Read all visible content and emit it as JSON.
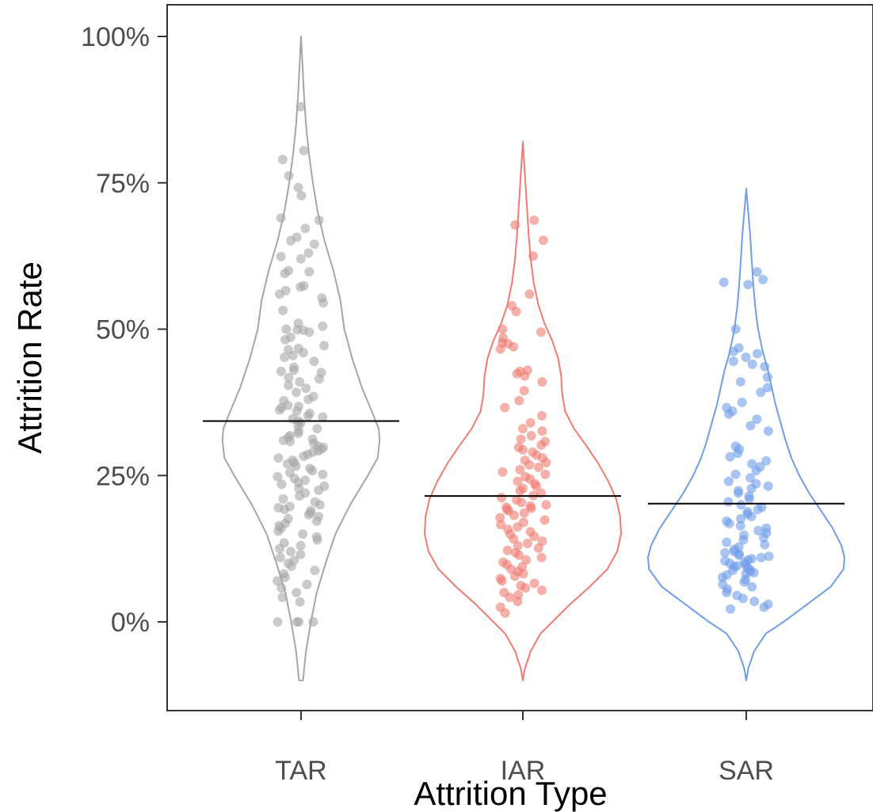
{
  "chart_data": {
    "type": "violin",
    "xlabel": "Attrition Type",
    "ylabel": "Attrition Rate",
    "ylim": [
      -0.12,
      1.06
    ],
    "y_ticks": [
      {
        "value": 0,
        "label": "0%"
      },
      {
        "value": 0.25,
        "label": "25%"
      },
      {
        "value": 0.5,
        "label": "50%"
      },
      {
        "value": 0.75,
        "label": "75%"
      },
      {
        "value": 1.0,
        "label": "100%"
      }
    ],
    "categories": [
      "TAR",
      "IAR",
      "SAR"
    ],
    "grid": false,
    "legend": "none",
    "series": [
      {
        "category": "TAR",
        "color": "#a6a6a6",
        "mean": 0.343,
        "range": [
          -0.1,
          1.0
        ],
        "density_profile": [
          [
            -0.1,
            0.02
          ],
          [
            -0.05,
            0.05
          ],
          [
            0.0,
            0.1
          ],
          [
            0.05,
            0.16
          ],
          [
            0.1,
            0.25
          ],
          [
            0.15,
            0.35
          ],
          [
            0.2,
            0.5
          ],
          [
            0.25,
            0.68
          ],
          [
            0.28,
            0.78
          ],
          [
            0.31,
            0.8
          ],
          [
            0.33,
            0.79
          ],
          [
            0.36,
            0.72
          ],
          [
            0.4,
            0.62
          ],
          [
            0.45,
            0.52
          ],
          [
            0.5,
            0.44
          ],
          [
            0.55,
            0.4
          ],
          [
            0.6,
            0.33
          ],
          [
            0.65,
            0.24
          ],
          [
            0.7,
            0.17
          ],
          [
            0.75,
            0.12
          ],
          [
            0.8,
            0.08
          ],
          [
            0.85,
            0.05
          ],
          [
            0.9,
            0.03
          ],
          [
            0.95,
            0.015
          ],
          [
            1.0,
            0.0
          ]
        ],
        "points": [
          0.88,
          0.805,
          0.79,
          0.762,
          0.742,
          0.728,
          0.69,
          0.686,
          0.672,
          0.657,
          0.651,
          0.645,
          0.63,
          0.624,
          0.62,
          0.6,
          0.598,
          0.595,
          0.574,
          0.572,
          0.566,
          0.56,
          0.553,
          0.545,
          0.532,
          0.51,
          0.505,
          0.5,
          0.499,
          0.498,
          0.495,
          0.486,
          0.482,
          0.472,
          0.467,
          0.465,
          0.46,
          0.455,
          0.452,
          0.445,
          0.435,
          0.43,
          0.428,
          0.426,
          0.417,
          0.415,
          0.41,
          0.404,
          0.399,
          0.392,
          0.385,
          0.38,
          0.378,
          0.37,
          0.368,
          0.366,
          0.362,
          0.36,
          0.356,
          0.352,
          0.35,
          0.347,
          0.343,
          0.34,
          0.335,
          0.33,
          0.326,
          0.322,
          0.318,
          0.315,
          0.312,
          0.31,
          0.308,
          0.305,
          0.3,
          0.298,
          0.295,
          0.292,
          0.29,
          0.286,
          0.283,
          0.28,
          0.276,
          0.272,
          0.27,
          0.266,
          0.262,
          0.258,
          0.255,
          0.252,
          0.248,
          0.245,
          0.242,
          0.238,
          0.235,
          0.232,
          0.228,
          0.225,
          0.22,
          0.215,
          0.21,
          0.205,
          0.2,
          0.197,
          0.195,
          0.192,
          0.19,
          0.186,
          0.183,
          0.18,
          0.176,
          0.172,
          0.168,
          0.164,
          0.16,
          0.155,
          0.15,
          0.145,
          0.14,
          0.135,
          0.13,
          0.125,
          0.12,
          0.115,
          0.11,
          0.105,
          0.1,
          0.095,
          0.088,
          0.082,
          0.076,
          0.07,
          0.064,
          0.058,
          0.05,
          0.042,
          0.034,
          0.0,
          0.0,
          0.0,
          0.0
        ]
      },
      {
        "category": "IAR",
        "color": "#ef7b72",
        "mean": 0.215,
        "range": [
          -0.1,
          0.82
        ],
        "density_profile": [
          [
            -0.1,
            0.0
          ],
          [
            -0.08,
            0.02
          ],
          [
            -0.05,
            0.08
          ],
          [
            -0.02,
            0.18
          ],
          [
            0.0,
            0.3
          ],
          [
            0.03,
            0.48
          ],
          [
            0.06,
            0.68
          ],
          [
            0.09,
            0.86
          ],
          [
            0.12,
            0.96
          ],
          [
            0.15,
            1.0
          ],
          [
            0.18,
            0.99
          ],
          [
            0.21,
            0.95
          ],
          [
            0.24,
            0.87
          ],
          [
            0.27,
            0.77
          ],
          [
            0.3,
            0.65
          ],
          [
            0.33,
            0.52
          ],
          [
            0.36,
            0.43
          ],
          [
            0.39,
            0.4
          ],
          [
            0.42,
            0.39
          ],
          [
            0.45,
            0.36
          ],
          [
            0.48,
            0.3
          ],
          [
            0.51,
            0.22
          ],
          [
            0.54,
            0.16
          ],
          [
            0.58,
            0.11
          ],
          [
            0.62,
            0.08
          ],
          [
            0.66,
            0.06
          ],
          [
            0.7,
            0.045
          ],
          [
            0.74,
            0.03
          ],
          [
            0.78,
            0.015
          ],
          [
            0.82,
            0.0
          ]
        ],
        "points": [
          0.686,
          0.678,
          0.652,
          0.625,
          0.56,
          0.54,
          0.53,
          0.5,
          0.495,
          0.485,
          0.477,
          0.475,
          0.47,
          0.466,
          0.43,
          0.428,
          0.424,
          0.42,
          0.41,
          0.395,
          0.378,
          0.366,
          0.352,
          0.34,
          0.33,
          0.326,
          0.318,
          0.312,
          0.308,
          0.302,
          0.298,
          0.294,
          0.29,
          0.285,
          0.28,
          0.276,
          0.272,
          0.268,
          0.264,
          0.26,
          0.256,
          0.252,
          0.248,
          0.244,
          0.24,
          0.236,
          0.232,
          0.228,
          0.224,
          0.22,
          0.216,
          0.212,
          0.208,
          0.204,
          0.2,
          0.198,
          0.196,
          0.194,
          0.192,
          0.19,
          0.186,
          0.182,
          0.178,
          0.174,
          0.17,
          0.166,
          0.162,
          0.158,
          0.154,
          0.15,
          0.146,
          0.142,
          0.138,
          0.134,
          0.13,
          0.126,
          0.122,
          0.118,
          0.114,
          0.11,
          0.106,
          0.102,
          0.098,
          0.094,
          0.09,
          0.086,
          0.082,
          0.078,
          0.074,
          0.07,
          0.066,
          0.062,
          0.058,
          0.054,
          0.05,
          0.046,
          0.042,
          0.035,
          0.025,
          0.015
        ]
      },
      {
        "category": "SAR",
        "color": "#6f9de8",
        "mean": 0.202,
        "range": [
          -0.1,
          0.74
        ],
        "density_profile": [
          [
            -0.1,
            0.0
          ],
          [
            -0.08,
            0.02
          ],
          [
            -0.05,
            0.08
          ],
          [
            -0.02,
            0.2
          ],
          [
            0.0,
            0.38
          ],
          [
            0.03,
            0.62
          ],
          [
            0.06,
            0.86
          ],
          [
            0.09,
            0.99
          ],
          [
            0.11,
            1.0
          ],
          [
            0.13,
            0.97
          ],
          [
            0.16,
            0.88
          ],
          [
            0.19,
            0.76
          ],
          [
            0.22,
            0.64
          ],
          [
            0.25,
            0.54
          ],
          [
            0.28,
            0.46
          ],
          [
            0.31,
            0.4
          ],
          [
            0.34,
            0.35
          ],
          [
            0.37,
            0.3
          ],
          [
            0.4,
            0.26
          ],
          [
            0.43,
            0.22
          ],
          [
            0.46,
            0.17
          ],
          [
            0.5,
            0.12
          ],
          [
            0.54,
            0.09
          ],
          [
            0.58,
            0.07
          ],
          [
            0.62,
            0.055
          ],
          [
            0.66,
            0.04
          ],
          [
            0.7,
            0.02
          ],
          [
            0.74,
            0.0
          ]
        ],
        "points": [
          0.598,
          0.585,
          0.58,
          0.576,
          0.5,
          0.468,
          0.462,
          0.458,
          0.452,
          0.445,
          0.44,
          0.436,
          0.418,
          0.41,
          0.4,
          0.392,
          0.375,
          0.366,
          0.36,
          0.355,
          0.346,
          0.335,
          0.326,
          0.3,
          0.295,
          0.288,
          0.282,
          0.275,
          0.27,
          0.265,
          0.258,
          0.252,
          0.246,
          0.24,
          0.236,
          0.232,
          0.228,
          0.224,
          0.22,
          0.215,
          0.21,
          0.205,
          0.2,
          0.196,
          0.192,
          0.188,
          0.184,
          0.18,
          0.176,
          0.172,
          0.168,
          0.164,
          0.16,
          0.156,
          0.152,
          0.148,
          0.144,
          0.14,
          0.136,
          0.132,
          0.128,
          0.124,
          0.12,
          0.118,
          0.116,
          0.114,
          0.112,
          0.11,
          0.108,
          0.106,
          0.104,
          0.102,
          0.1,
          0.098,
          0.096,
          0.094,
          0.092,
          0.09,
          0.088,
          0.086,
          0.084,
          0.082,
          0.08,
          0.076,
          0.072,
          0.068,
          0.064,
          0.06,
          0.056,
          0.05,
          0.045,
          0.04,
          0.035,
          0.03,
          0.025,
          0.022
        ]
      }
    ]
  }
}
